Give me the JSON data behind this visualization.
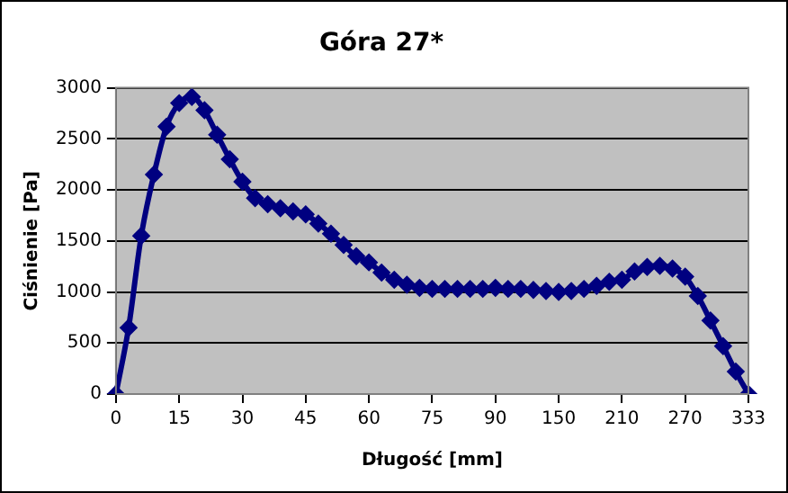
{
  "chart_data": {
    "type": "line",
    "title": "Góra 27*",
    "xlabel": "Długość [mm]",
    "ylabel": "Ciśnienie [Pa]",
    "categories": [
      "0",
      null,
      null,
      null,
      null,
      "15",
      null,
      null,
      null,
      null,
      "30",
      null,
      null,
      null,
      null,
      "45",
      null,
      null,
      null,
      null,
      "60",
      null,
      null,
      null,
      null,
      "75",
      null,
      null,
      null,
      null,
      "90",
      null,
      null,
      null,
      null,
      "150",
      null,
      null,
      null,
      null,
      "210",
      null,
      null,
      null,
      null,
      "270",
      null,
      null,
      null,
      null,
      "333"
    ],
    "series": [
      {
        "color": "#000080",
        "values": [
          0,
          650,
          1550,
          2150,
          2620,
          2850,
          2910,
          2780,
          2540,
          2300,
          2080,
          1920,
          1860,
          1820,
          1790,
          1760,
          1670,
          1570,
          1460,
          1350,
          1290,
          1190,
          1120,
          1070,
          1040,
          1030,
          1030,
          1030,
          1030,
          1030,
          1040,
          1030,
          1030,
          1020,
          1010,
          1000,
          1010,
          1030,
          1060,
          1100,
          1120,
          1200,
          1245,
          1255,
          1230,
          1150,
          960,
          720,
          470,
          220,
          0
        ]
      }
    ],
    "ylim": [
      0,
      3000
    ],
    "yticks": [
      0,
      500,
      1000,
      1500,
      2000,
      2500,
      3000
    ],
    "grid": "y",
    "marker": "diamond"
  }
}
